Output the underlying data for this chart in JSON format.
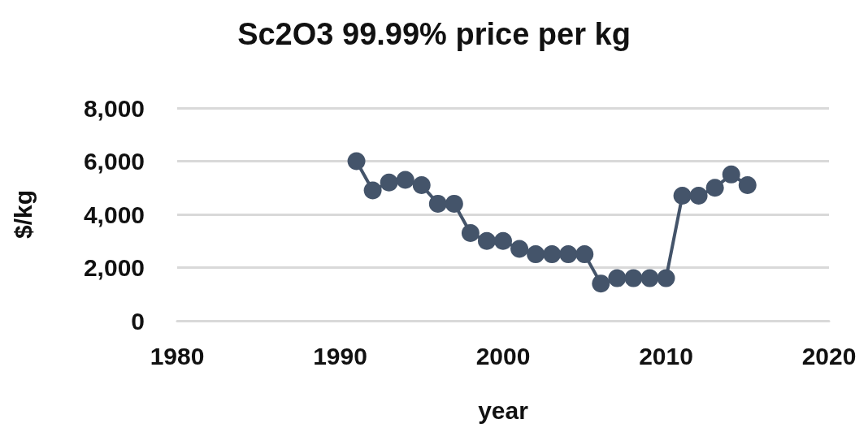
{
  "chart_data": {
    "type": "line",
    "title": "Sc2O3 99.99% price per kg",
    "xlabel": "year",
    "ylabel": "$/kg",
    "x": [
      1991,
      1992,
      1993,
      1994,
      1995,
      1996,
      1997,
      1998,
      1999,
      2000,
      2001,
      2002,
      2003,
      2004,
      2005,
      2006,
      2007,
      2008,
      2009,
      2010,
      2011,
      2012,
      2013,
      2014,
      2015
    ],
    "series": [
      {
        "color": "#44546a",
        "values": [
          6000,
          4900,
          5200,
          5300,
          5100,
          4400,
          4400,
          3300,
          3000,
          3000,
          2700,
          2500,
          2500,
          2500,
          2500,
          1400,
          1600,
          1600,
          1600,
          1600,
          4700,
          4700,
          5000,
          5500,
          5100
        ]
      }
    ],
    "xlim": [
      1980,
      2020
    ],
    "xticks": [
      1980,
      1990,
      2000,
      2010,
      2020
    ],
    "ylim": [
      0,
      8000
    ],
    "yticks": [
      0,
      {
        "value": 2000,
        "label": "2,000"
      },
      {
        "value": 4000,
        "label": "4,000"
      },
      {
        "value": 6000,
        "label": "6,000"
      },
      {
        "value": 8000,
        "label": "8,000"
      }
    ],
    "grid": "y",
    "marker": "circle",
    "line_style": "solid"
  }
}
